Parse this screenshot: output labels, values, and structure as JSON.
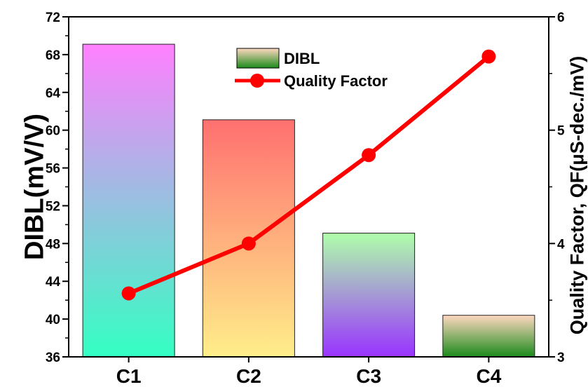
{
  "chart_data": {
    "type": "bar",
    "categories": [
      "C1",
      "C2",
      "C3",
      "C4"
    ],
    "series": [
      {
        "name": "DIBL",
        "type": "bar",
        "axis": "left",
        "values": [
          69.1,
          61.1,
          49.1,
          40.4
        ],
        "gradients": [
          [
            "#ff80ff",
            "#33ffc2"
          ],
          [
            "#ff7070",
            "#ffee8a"
          ],
          [
            "#b0ffaa",
            "#9933ff"
          ],
          [
            "#ffd8c0",
            "#1a8a1a"
          ]
        ]
      },
      {
        "name": "Quality Factor",
        "type": "line",
        "axis": "right",
        "values": [
          3.56,
          4.0,
          4.78,
          5.65
        ],
        "color": "#ff0000"
      }
    ],
    "title": "",
    "xlabel": "",
    "ylabel": "DIBL(mV/V)",
    "y2label": "Quality Factor, QF(μS-dec./mV)",
    "ylim": [
      36,
      72
    ],
    "y2lim": [
      3,
      6
    ],
    "yticks": [
      "36",
      "40",
      "44",
      "48",
      "52",
      "56",
      "60",
      "64",
      "68",
      "72"
    ],
    "y2ticks": [
      "3",
      "4",
      "5",
      "6"
    ],
    "legend_position": "top-center",
    "legend_swatch_gradient": [
      "#ffd8c0",
      "#1a8a1a"
    ],
    "grid": false
  }
}
